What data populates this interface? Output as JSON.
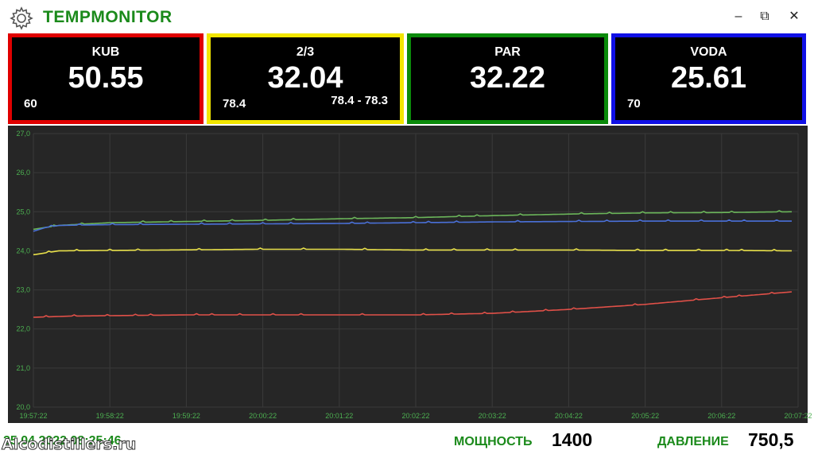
{
  "window": {
    "title": "TEMPMONITOR",
    "icon": "gear-icon",
    "controls": {
      "minimize": "–",
      "restore": "⧉",
      "close": "✕"
    }
  },
  "panels": [
    {
      "name": "KUB",
      "value": "50.55",
      "sub_left": "60",
      "sub_right": "",
      "border_color": "#e00000"
    },
    {
      "name": "2/3",
      "value": "32.04",
      "sub_left": "78.4",
      "sub_right": "78.4 - 78.3",
      "border_color": "#f2e600"
    },
    {
      "name": "PAR",
      "value": "32.22",
      "sub_left": "",
      "sub_right": "",
      "border_color": "#0a8a0a"
    },
    {
      "name": "VODA",
      "value": "25.61",
      "sub_left": "70",
      "sub_right": "",
      "border_color": "#1010e6"
    }
  ],
  "chart_data": {
    "type": "line",
    "background": "#262626",
    "grid": true,
    "ylim": [
      20,
      27
    ],
    "y_ticks": [
      "20,0",
      "21,0",
      "22,0",
      "23,0",
      "24,0",
      "25,0",
      "26,0",
      "27,0"
    ],
    "x_ticks": [
      "19:57:22",
      "19:58:22",
      "19:59:22",
      "20:00:22",
      "20:01:22",
      "20:02:22",
      "20:03:22",
      "20:04:22",
      "20:05:22",
      "20:06:22",
      "20:07:22"
    ],
    "xlim": [
      0,
      600
    ],
    "series": [
      {
        "color": "#6bb55a",
        "points": [
          [
            0,
            24.55
          ],
          [
            10,
            24.6
          ],
          [
            20,
            24.65
          ],
          [
            60,
            24.72
          ],
          [
            120,
            24.75
          ],
          [
            180,
            24.78
          ],
          [
            240,
            24.82
          ],
          [
            300,
            24.85
          ],
          [
            360,
            24.9
          ],
          [
            420,
            24.94
          ],
          [
            480,
            24.97
          ],
          [
            540,
            24.98
          ],
          [
            595,
            25.0
          ]
        ]
      },
      {
        "color": "#4a70d8",
        "points": [
          [
            0,
            24.5
          ],
          [
            10,
            24.6
          ],
          [
            20,
            24.65
          ],
          [
            60,
            24.67
          ],
          [
            120,
            24.68
          ],
          [
            180,
            24.69
          ],
          [
            240,
            24.7
          ],
          [
            300,
            24.72
          ],
          [
            360,
            24.74
          ],
          [
            420,
            24.75
          ],
          [
            480,
            24.76
          ],
          [
            540,
            24.76
          ],
          [
            595,
            24.76
          ]
        ]
      },
      {
        "color": "#e8e04a",
        "points": [
          [
            0,
            23.9
          ],
          [
            10,
            23.95
          ],
          [
            20,
            24.0
          ],
          [
            100,
            24.02
          ],
          [
            180,
            24.04
          ],
          [
            240,
            24.04
          ],
          [
            300,
            24.02
          ],
          [
            360,
            24.02
          ],
          [
            420,
            24.02
          ],
          [
            480,
            24.01
          ],
          [
            540,
            24.01
          ],
          [
            595,
            24.0
          ]
        ]
      },
      {
        "color": "#e05048",
        "points": [
          [
            0,
            22.3
          ],
          [
            30,
            22.33
          ],
          [
            120,
            22.36
          ],
          [
            240,
            22.36
          ],
          [
            300,
            22.36
          ],
          [
            360,
            22.4
          ],
          [
            420,
            22.5
          ],
          [
            480,
            22.63
          ],
          [
            540,
            22.8
          ],
          [
            595,
            22.95
          ]
        ]
      }
    ]
  },
  "footer": {
    "datetime": "25.04.2022  08:25:46",
    "watermark": "Alcodistillers.ru",
    "power_label": "МОЩНОСТЬ",
    "power_value": "1400",
    "pressure_label": "ДАВЛЕНИЕ",
    "pressure_value": "750,5"
  }
}
